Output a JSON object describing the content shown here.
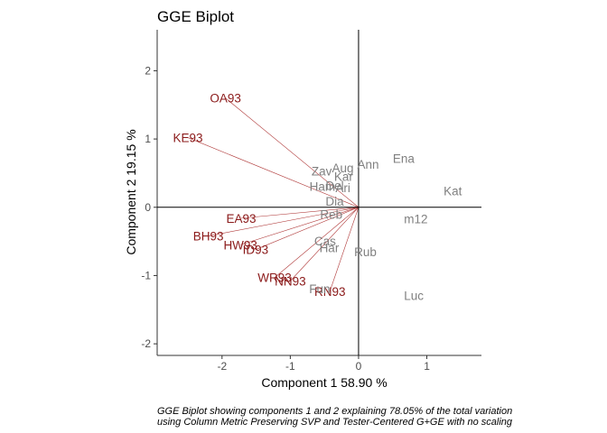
{
  "chart_data": {
    "type": "scatter",
    "title": "GGE Biplot",
    "xlabel": "Component 1 58.90 %",
    "ylabel": "Component 2 19.15 %",
    "xlim": [
      -2.95,
      1.8
    ],
    "ylim": [
      -2.17,
      2.6
    ],
    "xticks": [
      -2,
      -1,
      0,
      1
    ],
    "yticks": [
      -2,
      -1,
      0,
      1,
      2
    ],
    "caption_lines": [
      "GGE Biplot showing components 1 and 2 explaining 78.05% of the total variation",
      "using Column Metric Preserving SVP and Tester-Centered G+GE with no scaling"
    ],
    "colors": {
      "environment": "#8b1a1a",
      "genotype": "#808080",
      "vector": "#b03a3a",
      "axis": "#000000"
    },
    "series": [
      {
        "role": "environment",
        "points": [
          {
            "label": "OA93",
            "x": -1.95,
            "y": 1.6
          },
          {
            "label": "KE93",
            "x": -2.5,
            "y": 1.02
          },
          {
            "label": "EA93",
            "x": -1.72,
            "y": -0.16
          },
          {
            "label": "BH93",
            "x": -2.2,
            "y": -0.42
          },
          {
            "label": "HW93",
            "x": -1.73,
            "y": -0.55
          },
          {
            "label": "ID93",
            "x": -1.51,
            "y": -0.62
          },
          {
            "label": "WR93",
            "x": -1.23,
            "y": -1.03
          },
          {
            "label": "NN93",
            "x": -1.0,
            "y": -1.08
          },
          {
            "label": "RN93",
            "x": -0.42,
            "y": -1.23
          }
        ]
      },
      {
        "role": "genotype",
        "points": [
          {
            "label": "Ena",
            "x": 0.66,
            "y": 0.72
          },
          {
            "label": "Ann",
            "x": 0.14,
            "y": 0.63
          },
          {
            "label": "Aug",
            "x": -0.23,
            "y": 0.58
          },
          {
            "label": "Zav",
            "x": -0.54,
            "y": 0.53
          },
          {
            "label": "Kar",
            "x": -0.22,
            "y": 0.45
          },
          {
            "label": "Del",
            "x": -0.35,
            "y": 0.32
          },
          {
            "label": "Ham",
            "x": -0.53,
            "y": 0.31
          },
          {
            "label": "Ari",
            "x": -0.23,
            "y": 0.29
          },
          {
            "label": "Dia",
            "x": -0.35,
            "y": 0.09
          },
          {
            "label": "Reb",
            "x": -0.4,
            "y": -0.1
          },
          {
            "label": "Kat",
            "x": 1.38,
            "y": 0.24
          },
          {
            "label": "m12",
            "x": 0.84,
            "y": -0.17
          },
          {
            "label": "Cas",
            "x": -0.49,
            "y": -0.49
          },
          {
            "label": "Har",
            "x": -0.43,
            "y": -0.59
          },
          {
            "label": "Rub",
            "x": 0.1,
            "y": -0.65
          },
          {
            "label": "Fun",
            "x": -0.57,
            "y": -1.19
          },
          {
            "label": "Luc",
            "x": 0.81,
            "y": -1.29
          }
        ]
      }
    ]
  }
}
